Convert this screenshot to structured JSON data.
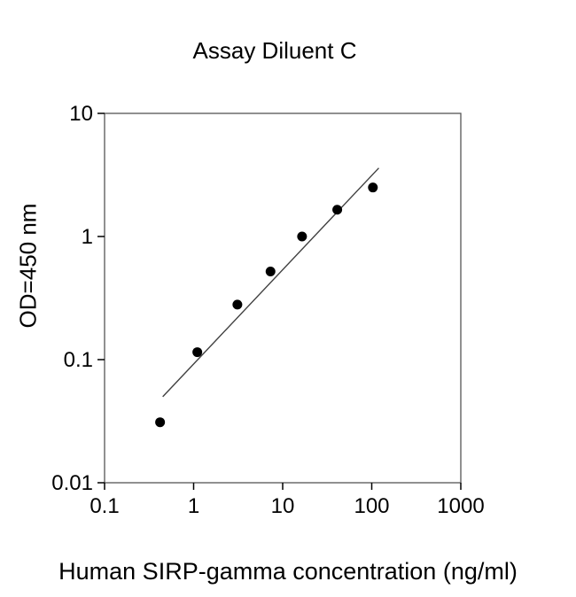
{
  "title": "Assay Diluent C",
  "chart_data": {
    "type": "scatter",
    "title": "Assay Diluent C",
    "xlabel": "Human SIRP-gamma concentration (ng/ml)",
    "ylabel": "OD=450 nm",
    "xscale": "log",
    "yscale": "log",
    "xlim": [
      0.1,
      1000
    ],
    "ylim": [
      0.01,
      10
    ],
    "xticks": [
      0.1,
      1,
      10,
      100,
      1000
    ],
    "yticks": [
      0.01,
      0.1,
      1,
      10
    ],
    "grid": false,
    "legend": "none",
    "points": {
      "x": [
        0.42,
        1.1,
        3.1,
        7.3,
        16.5,
        41,
        103
      ],
      "y": [
        0.031,
        0.115,
        0.28,
        0.52,
        1.0,
        1.65,
        2.5
      ]
    },
    "trend_line": {
      "x1": 0.45,
      "y1": 0.05,
      "x2": 120,
      "y2": 3.6
    },
    "marker": {
      "shape": "circle",
      "color": "#000000",
      "radius": 5.5
    },
    "line_color": "#404040",
    "axis_color": "#555555"
  }
}
